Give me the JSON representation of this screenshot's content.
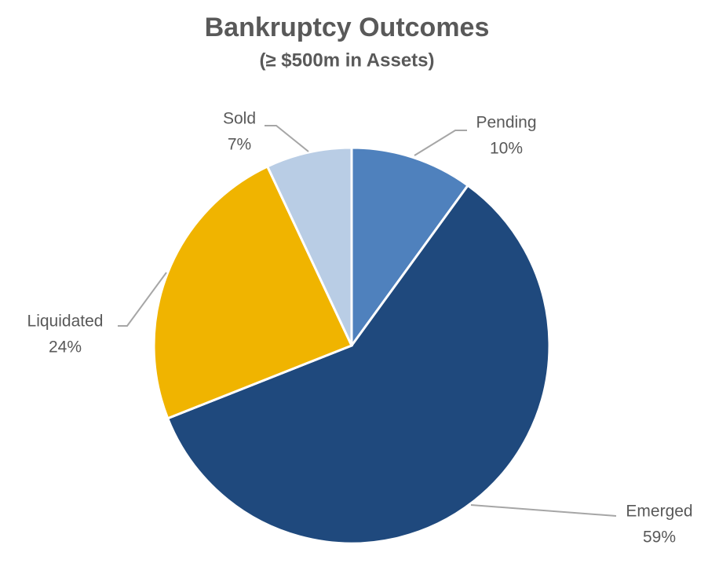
{
  "chart_data": {
    "type": "pie",
    "title": "Bankruptcy Outcomes",
    "subtitle": "(≥ $500m in Assets)",
    "categories": [
      "Pending",
      "Emerged",
      "Liquidated",
      "Sold"
    ],
    "values": [
      10,
      59,
      24,
      7
    ],
    "value_labels": [
      "10%",
      "59%",
      "24%",
      "7%"
    ],
    "colors": [
      "#4f81bd",
      "#1f497d",
      "#f0b400",
      "#b9cde5"
    ]
  }
}
